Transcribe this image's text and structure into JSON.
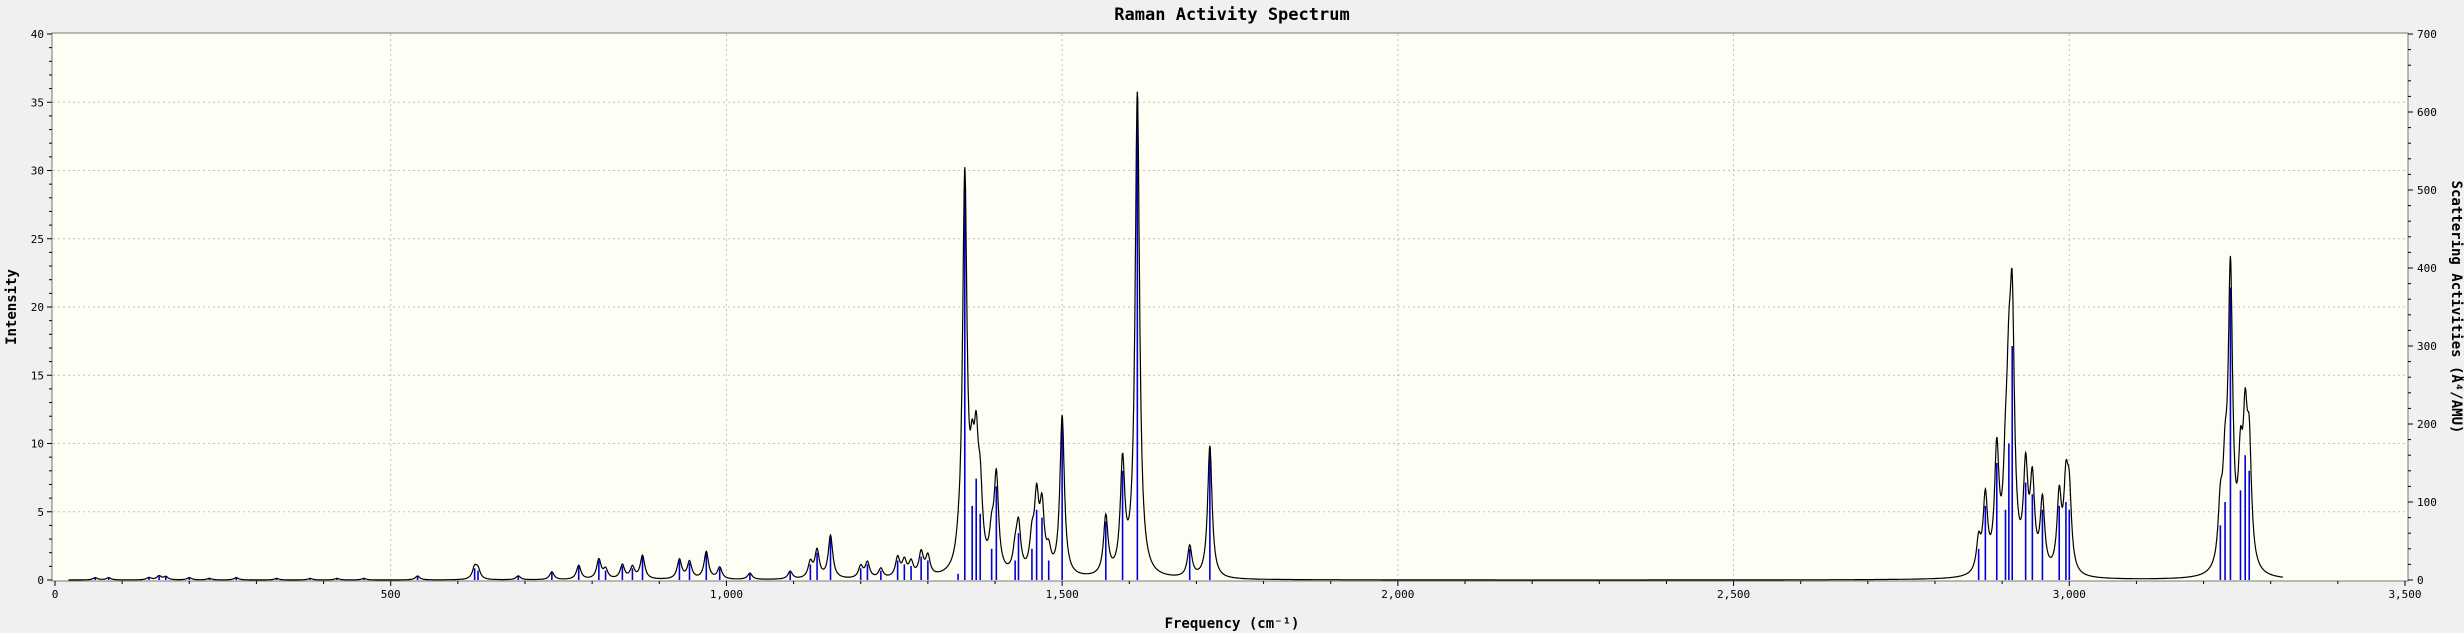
{
  "chart_data": {
    "type": "line",
    "title": "Raman Activity Spectrum",
    "xlabel": "Frequency (cm⁻¹)",
    "ylabel": "Intensity",
    "y2label": "Scattering Activities (Å⁴/AMU)",
    "xlim": [
      0,
      3500
    ],
    "ylim": [
      0,
      40
    ],
    "y2lim": [
      0,
      700
    ],
    "xticks": [
      0,
      500,
      1000,
      1500,
      2000,
      2500,
      3000,
      3500
    ],
    "xtick_labels": [
      "0",
      "500",
      "1,000",
      "1,500",
      "2,000",
      "2,500",
      "3,000",
      "3,500"
    ],
    "yticks": [
      0,
      5,
      10,
      15,
      20,
      25,
      30,
      35,
      40
    ],
    "ytick_labels": [
      "0",
      "5",
      "10",
      "15",
      "20",
      "25",
      "30",
      "35",
      "40"
    ],
    "y2ticks": [
      0,
      100,
      200,
      300,
      400,
      500,
      600,
      700
    ],
    "y2tick_labels": [
      "0",
      "100",
      "200",
      "300",
      "400",
      "500",
      "600",
      "700"
    ],
    "grid": true,
    "colors": {
      "plot_bg": "#fefef4",
      "page_bg": "#f0f0f0",
      "grid": "#c0c0c0",
      "spectrum": "#000000",
      "sticks": "#0000dd"
    },
    "line_width_cm1": 8,
    "series": [
      {
        "name": "Scattering activities",
        "style": "sticks",
        "axis": "right",
        "x": [
          60,
          80,
          140,
          155,
          165,
          200,
          230,
          270,
          330,
          380,
          420,
          460,
          540,
          625,
          630,
          690,
          740,
          780,
          810,
          820,
          845,
          860,
          875,
          930,
          945,
          970,
          990,
          1035,
          1095,
          1125,
          1135,
          1155,
          1200,
          1210,
          1230,
          1255,
          1265,
          1275,
          1290,
          1300,
          1345,
          1355,
          1366,
          1372,
          1378,
          1395,
          1402,
          1430,
          1435,
          1455,
          1462,
          1470,
          1480,
          1500,
          1565,
          1590,
          1612,
          1690,
          1720,
          2865,
          2875,
          2892,
          2905,
          2910,
          2915,
          2935,
          2945,
          2960,
          2985,
          2995,
          3000,
          3225,
          3232,
          3240,
          3255,
          3262,
          3268
        ],
        "values": [
          3,
          3,
          3,
          5,
          4,
          3,
          2,
          3,
          2,
          2,
          2,
          2,
          5,
          15,
          12,
          5,
          10,
          18,
          25,
          12,
          18,
          15,
          30,
          25,
          22,
          35,
          15,
          8,
          10,
          20,
          35,
          55,
          15,
          20,
          12,
          25,
          20,
          18,
          30,
          25,
          8,
          505,
          95,
          130,
          85,
          40,
          120,
          25,
          60,
          40,
          90,
          80,
          25,
          205,
          75,
          140,
          620,
          40,
          170,
          40,
          95,
          150,
          90,
          175,
          300,
          125,
          110,
          90,
          95,
          100,
          90,
          70,
          100,
          375,
          115,
          160,
          140
        ]
      }
    ]
  }
}
